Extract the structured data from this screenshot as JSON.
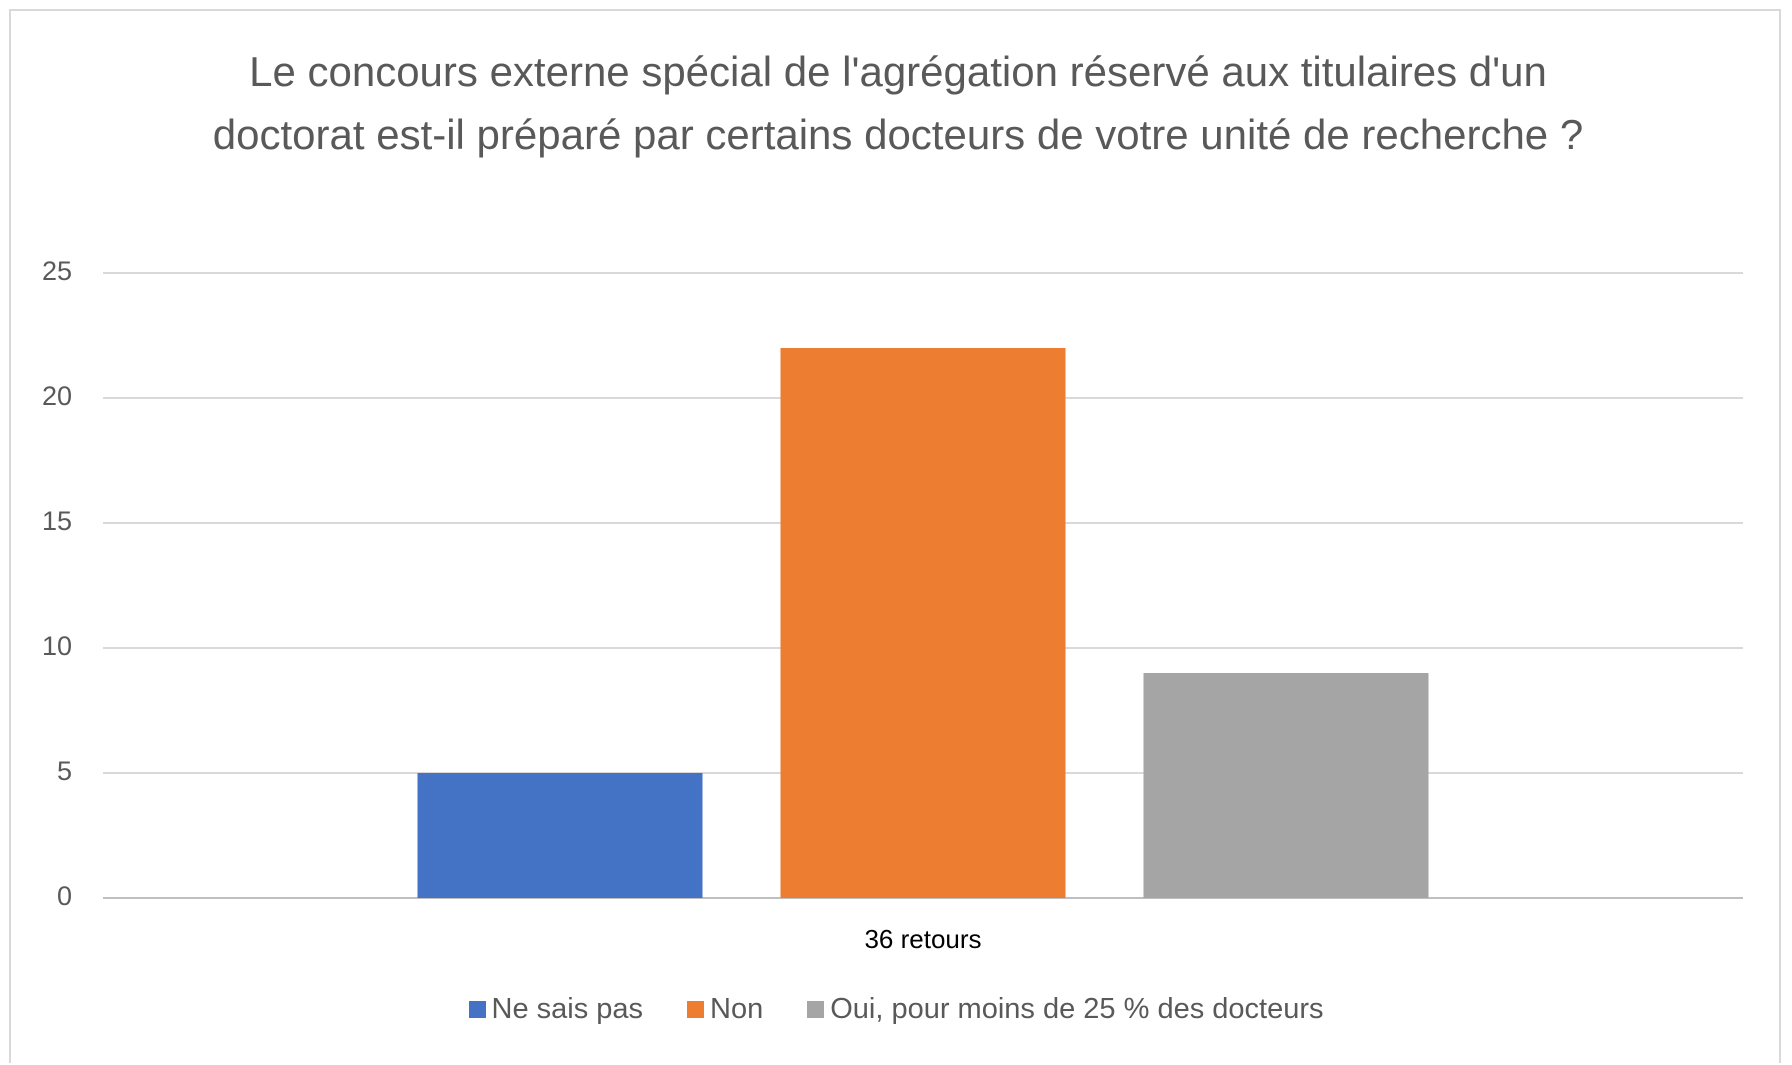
{
  "chart_data": {
    "type": "bar",
    "title": "Le concours externe spécial de l'agrégation réservé aux titulaires d'un doctorat est-il préparé par certains docteurs de votre unité de recherche ?",
    "categories": [
      "36 retours"
    ],
    "series": [
      {
        "name": "Ne sais pas",
        "color": "#4472c4",
        "values": [
          5
        ]
      },
      {
        "name": "Non",
        "color": "#ed7d31",
        "values": [
          22
        ]
      },
      {
        "name": "Oui, pour moins de 25 % des docteurs",
        "color": "#a5a5a5",
        "values": [
          9
        ]
      }
    ],
    "ylim": [
      0,
      25
    ],
    "yticks": [
      0,
      5,
      10,
      15,
      20,
      25
    ],
    "grid": true,
    "legend": "bottom"
  }
}
